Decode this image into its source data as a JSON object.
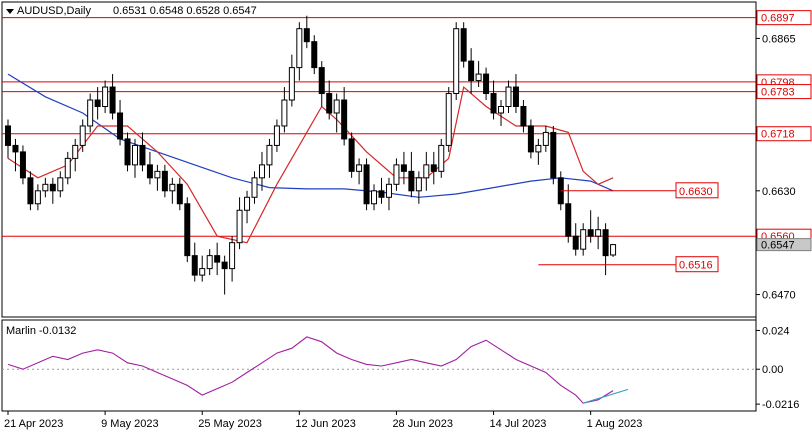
{
  "header": {
    "symbol": "AUDUSD,Daily",
    "ohlc": "0.6531 0.6548 0.6528 0.6547"
  },
  "indicator": {
    "label": "Marlin -0.0132"
  },
  "colors": {
    "up": "#ffffff",
    "down": "#000000",
    "ma_slow": "#1f3fbf",
    "ma_fast": "#d62728",
    "levels": "#e00000",
    "osc": "#a020a0",
    "osc_signal": "#30a0c0"
  },
  "chart_data": [
    {
      "type": "candlestick",
      "title": "AUDUSD,Daily",
      "ylim": [
        0.644,
        0.6915
      ],
      "y_ticks": [
        0.647,
        0.663,
        0.6865
      ],
      "x_tick_labels": [
        "21 Apr 2023",
        "9 May 2023",
        "25 May 2023",
        "12 Jun 2023",
        "28 Jun 2023",
        "14 Jul 2023",
        "1 Aug 2023"
      ],
      "x_tick_index": [
        0,
        13,
        26,
        39,
        52,
        65,
        78
      ],
      "candles": [
        [
          0.673,
          0.674,
          0.668,
          0.67
        ],
        [
          0.67,
          0.671,
          0.666,
          0.669
        ],
        [
          0.669,
          0.67,
          0.664,
          0.665
        ],
        [
          0.665,
          0.666,
          0.66,
          0.661
        ],
        [
          0.661,
          0.664,
          0.66,
          0.663
        ],
        [
          0.663,
          0.665,
          0.662,
          0.664
        ],
        [
          0.664,
          0.665,
          0.661,
          0.663
        ],
        [
          0.663,
          0.666,
          0.662,
          0.665
        ],
        [
          0.665,
          0.669,
          0.664,
          0.668
        ],
        [
          0.668,
          0.671,
          0.666,
          0.67
        ],
        [
          0.67,
          0.674,
          0.669,
          0.673
        ],
        [
          0.673,
          0.678,
          0.672,
          0.677
        ],
        [
          0.677,
          0.679,
          0.674,
          0.676
        ],
        [
          0.676,
          0.68,
          0.675,
          0.679
        ],
        [
          0.679,
          0.681,
          0.674,
          0.675
        ],
        [
          0.675,
          0.677,
          0.67,
          0.671
        ],
        [
          0.671,
          0.672,
          0.666,
          0.667
        ],
        [
          0.667,
          0.671,
          0.665,
          0.67
        ],
        [
          0.67,
          0.672,
          0.666,
          0.667
        ],
        [
          0.667,
          0.669,
          0.664,
          0.665
        ],
        [
          0.665,
          0.667,
          0.663,
          0.666
        ],
        [
          0.666,
          0.667,
          0.662,
          0.663
        ],
        [
          0.663,
          0.665,
          0.661,
          0.664
        ],
        [
          0.664,
          0.665,
          0.66,
          0.661
        ],
        [
          0.661,
          0.662,
          0.652,
          0.653
        ],
        [
          0.653,
          0.655,
          0.649,
          0.65
        ],
        [
          0.65,
          0.653,
          0.649,
          0.651
        ],
        [
          0.651,
          0.654,
          0.65,
          0.653
        ],
        [
          0.653,
          0.655,
          0.65,
          0.652
        ],
        [
          0.652,
          0.653,
          0.647,
          0.651
        ],
        [
          0.651,
          0.656,
          0.649,
          0.655
        ],
        [
          0.655,
          0.662,
          0.654,
          0.66
        ],
        [
          0.66,
          0.663,
          0.658,
          0.662
        ],
        [
          0.662,
          0.666,
          0.661,
          0.665
        ],
        [
          0.665,
          0.669,
          0.663,
          0.667
        ],
        [
          0.667,
          0.671,
          0.665,
          0.67
        ],
        [
          0.67,
          0.674,
          0.669,
          0.673
        ],
        [
          0.673,
          0.679,
          0.672,
          0.677
        ],
        [
          0.677,
          0.684,
          0.676,
          0.682
        ],
        [
          0.682,
          0.689,
          0.68,
          0.688
        ],
        [
          0.688,
          0.69,
          0.685,
          0.686
        ],
        [
          0.686,
          0.687,
          0.681,
          0.682
        ],
        [
          0.682,
          0.683,
          0.676,
          0.678
        ],
        [
          0.678,
          0.68,
          0.674,
          0.675
        ],
        [
          0.675,
          0.678,
          0.672,
          0.677
        ],
        [
          0.677,
          0.679,
          0.67,
          0.671
        ],
        [
          0.671,
          0.672,
          0.665,
          0.666
        ],
        [
          0.666,
          0.668,
          0.664,
          0.667
        ],
        [
          0.667,
          0.668,
          0.66,
          0.661
        ],
        [
          0.661,
          0.664,
          0.66,
          0.663
        ],
        [
          0.663,
          0.665,
          0.661,
          0.662
        ],
        [
          0.662,
          0.665,
          0.66,
          0.664
        ],
        [
          0.664,
          0.668,
          0.663,
          0.667
        ],
        [
          0.667,
          0.669,
          0.664,
          0.666
        ],
        [
          0.666,
          0.669,
          0.662,
          0.663
        ],
        [
          0.663,
          0.666,
          0.661,
          0.665
        ],
        [
          0.665,
          0.669,
          0.663,
          0.667
        ],
        [
          0.667,
          0.669,
          0.664,
          0.666
        ],
        [
          0.666,
          0.671,
          0.665,
          0.67
        ],
        [
          0.67,
          0.679,
          0.669,
          0.678
        ],
        [
          0.678,
          0.689,
          0.677,
          0.688
        ],
        [
          0.688,
          0.689,
          0.682,
          0.683
        ],
        [
          0.683,
          0.685,
          0.678,
          0.68
        ],
        [
          0.68,
          0.683,
          0.679,
          0.681
        ],
        [
          0.681,
          0.682,
          0.677,
          0.678
        ],
        [
          0.678,
          0.68,
          0.674,
          0.675
        ],
        [
          0.675,
          0.677,
          0.673,
          0.676
        ],
        [
          0.676,
          0.68,
          0.675,
          0.679
        ],
        [
          0.679,
          0.681,
          0.675,
          0.676
        ],
        [
          0.676,
          0.677,
          0.672,
          0.673
        ],
        [
          0.673,
          0.674,
          0.668,
          0.669
        ],
        [
          0.669,
          0.671,
          0.667,
          0.67
        ],
        [
          0.67,
          0.673,
          0.669,
          0.672
        ],
        [
          0.672,
          0.673,
          0.664,
          0.665
        ],
        [
          0.665,
          0.666,
          0.66,
          0.661
        ],
        [
          0.661,
          0.664,
          0.655,
          0.656
        ],
        [
          0.656,
          0.658,
          0.653,
          0.654
        ],
        [
          0.654,
          0.658,
          0.653,
          0.657
        ],
        [
          0.657,
          0.66,
          0.655,
          0.656
        ],
        [
          0.656,
          0.659,
          0.654,
          0.657
        ],
        [
          0.657,
          0.658,
          0.65,
          0.653
        ],
        [
          0.6531,
          0.6548,
          0.6528,
          0.6547
        ]
      ],
      "lines": [
        {
          "name": "",
          "color": "#1f3fbf",
          "points": [
            [
              0,
              0.681
            ],
            [
              5,
              0.6775
            ],
            [
              10,
              0.675
            ],
            [
              15,
              0.671
            ],
            [
              20,
              0.669
            ],
            [
              25,
              0.667
            ],
            [
              30,
              0.665
            ],
            [
              35,
              0.6635
            ],
            [
              40,
              0.6633
            ],
            [
              45,
              0.6633
            ],
            [
              50,
              0.6628
            ],
            [
              55,
              0.662
            ],
            [
              60,
              0.6625
            ],
            [
              65,
              0.6635
            ],
            [
              70,
              0.6645
            ],
            [
              74,
              0.665
            ],
            [
              78,
              0.6645
            ],
            [
              81,
              0.663
            ]
          ]
        },
        {
          "name": "",
          "color": "#d62728",
          "points": [
            [
              0,
              0.668
            ],
            [
              4,
              0.665
            ],
            [
              8,
              0.667
            ],
            [
              12,
              0.673
            ],
            [
              16,
              0.673
            ],
            [
              20,
              0.669
            ],
            [
              24,
              0.664
            ],
            [
              28,
              0.656
            ],
            [
              32,
              0.655
            ],
            [
              36,
              0.664
            ],
            [
              40,
              0.672
            ],
            [
              42,
              0.676
            ],
            [
              44,
              0.674
            ],
            [
              48,
              0.669
            ],
            [
              52,
              0.665
            ],
            [
              56,
              0.665
            ],
            [
              59,
              0.668
            ],
            [
              61,
              0.679
            ],
            [
              64,
              0.676
            ],
            [
              68,
              0.673
            ],
            [
              72,
              0.673
            ],
            [
              75,
              0.672
            ],
            [
              77,
              0.666
            ],
            [
              79,
              0.664
            ],
            [
              81,
              0.665
            ]
          ]
        }
      ],
      "h_levels": [
        {
          "value": 0.6897,
          "label": "0.6897"
        },
        {
          "value": 0.6798,
          "label": "0.6798"
        },
        {
          "value": 0.6783,
          "label": "0.6783"
        },
        {
          "value": 0.6718,
          "label": "0.6718"
        },
        {
          "value": 0.656,
          "label": "0.6560"
        }
      ],
      "markers": [
        {
          "value": 0.663,
          "label": "0.6630",
          "from_index": 74
        },
        {
          "value": 0.6516,
          "label": "0.6516",
          "from_index": 71
        }
      ],
      "current_price": {
        "value": 0.6547,
        "label": "0.6547"
      },
      "grid": false
    },
    {
      "type": "line",
      "title": "Marlin -0.0132",
      "ylim": [
        -0.024,
        0.028
      ],
      "y_ticks": [
        0.024,
        0.0,
        -0.0216
      ],
      "y_tick_labels": [
        "0.024",
        "0.00",
        "-0.0216"
      ],
      "series": [
        {
          "name": "",
          "points": [
            [
              0,
              0.003
            ],
            [
              2,
              0.0
            ],
            [
              4,
              0.004
            ],
            [
              6,
              0.008
            ],
            [
              8,
              0.006
            ],
            [
              10,
              0.01
            ],
            [
              12,
              0.012
            ],
            [
              14,
              0.01
            ],
            [
              16,
              0.004
            ],
            [
              18,
              0.002
            ],
            [
              20,
              -0.002
            ],
            [
              22,
              -0.006
            ],
            [
              24,
              -0.01
            ],
            [
              26,
              -0.016
            ],
            [
              28,
              -0.012
            ],
            [
              30,
              -0.008
            ],
            [
              32,
              -0.002
            ],
            [
              34,
              0.004
            ],
            [
              36,
              0.01
            ],
            [
              38,
              0.013
            ],
            [
              40,
              0.02
            ],
            [
              42,
              0.017
            ],
            [
              44,
              0.01
            ],
            [
              46,
              0.006
            ],
            [
              48,
              0.003
            ],
            [
              50,
              0.002
            ],
            [
              52,
              0.004
            ],
            [
              54,
              0.006
            ],
            [
              56,
              0.004
            ],
            [
              58,
              0.002
            ],
            [
              60,
              0.006
            ],
            [
              62,
              0.014
            ],
            [
              64,
              0.018
            ],
            [
              66,
              0.012
            ],
            [
              68,
              0.006
            ],
            [
              70,
              0.002
            ],
            [
              72,
              -0.002
            ],
            [
              74,
              -0.01
            ],
            [
              76,
              -0.016
            ],
            [
              77,
              -0.021
            ],
            [
              79,
              -0.019
            ],
            [
              81,
              -0.0132
            ]
          ]
        },
        {
          "name": "",
          "points": [
            [
              77,
              -0.021
            ],
            [
              83,
              -0.0125
            ]
          ]
        }
      ]
    }
  ]
}
